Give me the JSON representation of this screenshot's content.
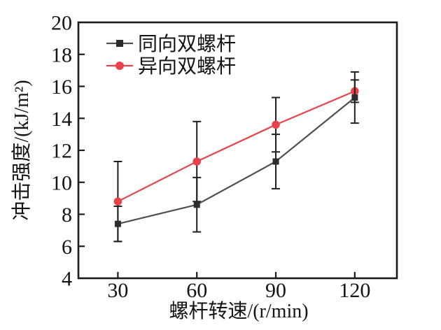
{
  "chart_data": {
    "type": "line",
    "title": "",
    "x": [
      30,
      60,
      90,
      120
    ],
    "x_ticks": [
      30,
      60,
      90,
      120
    ],
    "y_ticks": [
      4,
      6,
      8,
      10,
      12,
      14,
      16,
      18,
      20
    ],
    "xlim": [
      15,
      136
    ],
    "ylim": [
      4,
      20
    ],
    "xlabel": "螺杆转速/(r/min)",
    "ylabel": "冲击强度/(kJ/m²)",
    "grid": false,
    "legend_position": "upper-left-inside",
    "axis_color": "#1a1a1a",
    "error_bar_color": "#1f1f1f",
    "series": [
      {
        "name": "同向双螺杆",
        "marker": "square",
        "line_color": "#4f4f4f",
        "marker_color": "#2d2d2d",
        "values": [
          7.4,
          8.6,
          11.3,
          15.3
        ],
        "errors": [
          1.1,
          1.7,
          1.7,
          1.6
        ]
      },
      {
        "name": "异向双螺杆",
        "marker": "circle",
        "line_color": "#e8434a",
        "marker_color": "#e8434a",
        "values": [
          8.8,
          11.3,
          13.6,
          15.7
        ],
        "errors": [
          2.5,
          2.5,
          1.7,
          0.7
        ]
      }
    ]
  }
}
